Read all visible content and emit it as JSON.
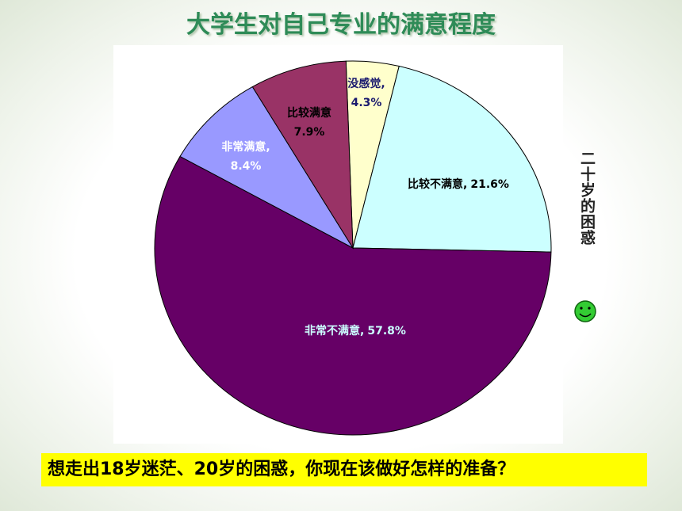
{
  "chart_data": {
    "type": "pie",
    "title": "大学生对自己专业的满意程度",
    "categories": [
      "没感觉,",
      "比较不满意,",
      "非常不满意,",
      "非常满意,",
      "比较满意"
    ],
    "values": [
      4.3,
      21.6,
      57.8,
      8.4,
      7.9
    ],
    "value_labels": [
      "4.3%",
      "21.6%",
      "57.8%",
      "8.4%",
      "7.9%"
    ],
    "colors": [
      "#ffffcc",
      "#ccffff",
      "#660066",
      "#9999ff",
      "#993366"
    ]
  },
  "side_text": "二十岁的困惑",
  "banner": "想走出18岁迷茫、20岁的困惑，你现在该做好怎样的准备？"
}
